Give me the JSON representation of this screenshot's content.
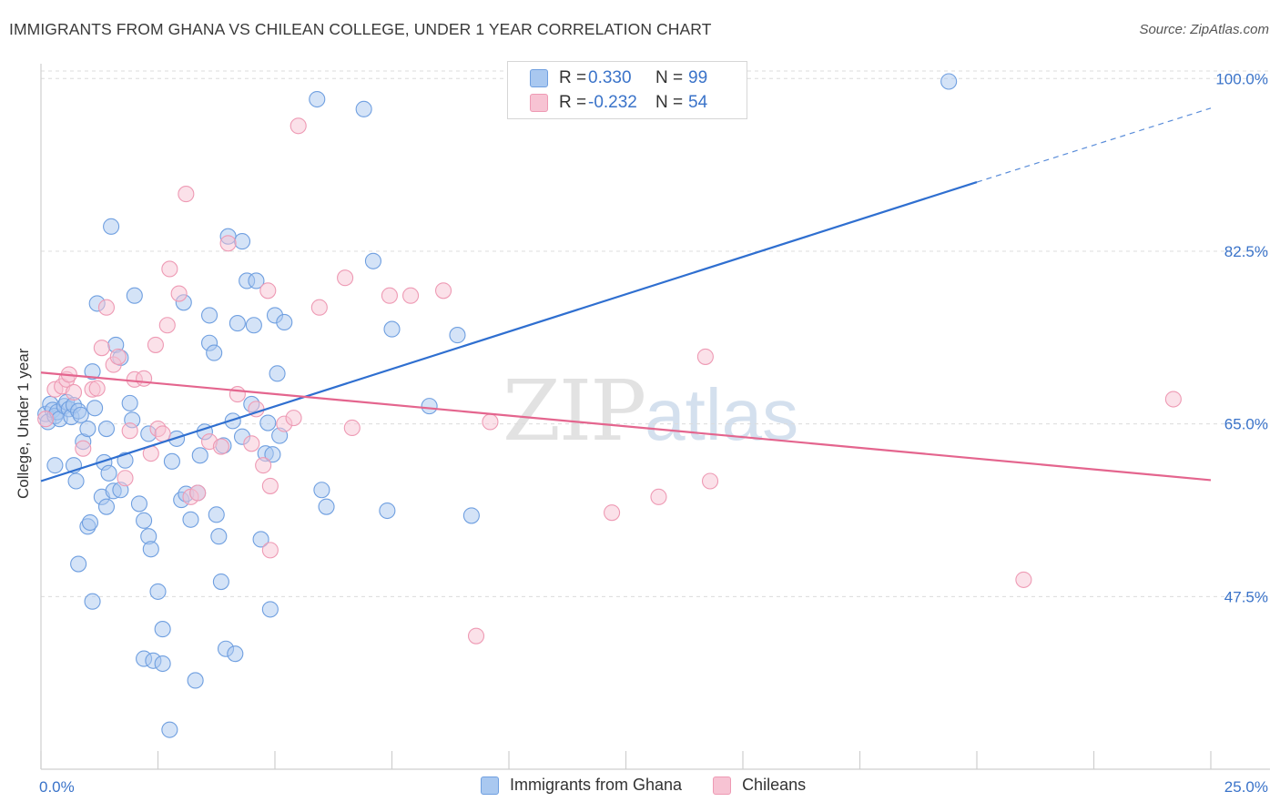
{
  "title": "IMMIGRANTS FROM GHANA VS CHILEAN COLLEGE, UNDER 1 YEAR CORRELATION CHART",
  "source": "Source: ZipAtlas.com",
  "watermark": {
    "zip": "ZIP",
    "atlas": "atlas"
  },
  "legend": {
    "rows": [
      {
        "r_label": "R =",
        "r_value": "0.330",
        "n_label": "N =",
        "n_value": "99",
        "color": "#a9c8f0",
        "border": "#6f9fe0"
      },
      {
        "r_label": "R =",
        "r_value": "-0.232",
        "n_label": "N =",
        "n_value": "54",
        "color": "#f7c3d3",
        "border": "#ee9ab4"
      }
    ]
  },
  "bottom_legend": [
    {
      "label": "Immigrants from Ghana",
      "color": "#a9c8f0",
      "border": "#6f9fe0"
    },
    {
      "label": "Chileans",
      "color": "#f7c3d3",
      "border": "#ee9ab4"
    }
  ],
  "chart_data": {
    "type": "scatter",
    "ylabel": "College, Under 1 year",
    "xlim": [
      0,
      25
    ],
    "ylim": [
      30,
      101.5
    ],
    "x_tick_labels": [
      {
        "value": 0,
        "label": "0.0%"
      },
      {
        "value": 25,
        "label": "25.0%"
      }
    ],
    "y_tick_labels": [
      {
        "value": 100,
        "label": "100.0%"
      },
      {
        "value": 82.5,
        "label": "82.5%"
      },
      {
        "value": 65,
        "label": "65.0%"
      },
      {
        "value": 47.5,
        "label": "47.5%"
      }
    ],
    "grid": true,
    "axis_color": "#3a73c9",
    "series": [
      {
        "name": "Immigrants from Ghana",
        "color": "#6f9fe0",
        "fill": "#a9c8f0",
        "trend": {
          "x0": 0,
          "y0": 59.2,
          "x1": 20.0,
          "y1": 89.5,
          "dash_to_x": 25.0,
          "dash_to_y": 97.0,
          "color": "#2f6fd0"
        },
        "points": [
          [
            0.1,
            66.0
          ],
          [
            0.15,
            65.2
          ],
          [
            0.2,
            67.0
          ],
          [
            0.25,
            66.4
          ],
          [
            0.3,
            65.8
          ],
          [
            0.35,
            66.2
          ],
          [
            0.4,
            65.5
          ],
          [
            0.5,
            66.8
          ],
          [
            0.55,
            67.2
          ],
          [
            0.6,
            66.5
          ],
          [
            0.65,
            65.7
          ],
          [
            0.7,
            66.9
          ],
          [
            0.8,
            66.3
          ],
          [
            0.85,
            65.9
          ],
          [
            0.3,
            60.8
          ],
          [
            0.7,
            60.8
          ],
          [
            0.75,
            59.2
          ],
          [
            0.9,
            63.2
          ],
          [
            1.0,
            64.5
          ],
          [
            1.1,
            70.3
          ],
          [
            1.15,
            66.6
          ],
          [
            1.2,
            77.2
          ],
          [
            1.3,
            57.6
          ],
          [
            1.35,
            61.1
          ],
          [
            1.4,
            64.5
          ],
          [
            1.45,
            60.0
          ],
          [
            1.55,
            58.2
          ],
          [
            1.6,
            73.0
          ],
          [
            1.7,
            71.7
          ],
          [
            1.8,
            61.3
          ],
          [
            1.9,
            67.1
          ],
          [
            1.95,
            65.4
          ],
          [
            2.1,
            56.9
          ],
          [
            2.2,
            55.2
          ],
          [
            2.3,
            53.6
          ],
          [
            2.35,
            52.3
          ],
          [
            2.5,
            48.0
          ],
          [
            2.6,
            44.2
          ],
          [
            2.2,
            41.2
          ],
          [
            2.4,
            41.0
          ],
          [
            2.6,
            40.7
          ],
          [
            2.75,
            34.0
          ],
          [
            2.8,
            61.2
          ],
          [
            2.9,
            63.5
          ],
          [
            3.0,
            57.3
          ],
          [
            3.1,
            57.9
          ],
          [
            3.2,
            55.3
          ],
          [
            3.3,
            39.0
          ],
          [
            3.35,
            58.0
          ],
          [
            3.4,
            61.8
          ],
          [
            3.5,
            64.2
          ],
          [
            3.6,
            73.2
          ],
          [
            3.7,
            72.2
          ],
          [
            3.75,
            55.8
          ],
          [
            3.8,
            53.6
          ],
          [
            3.85,
            49.0
          ],
          [
            3.9,
            62.8
          ],
          [
            3.95,
            42.2
          ],
          [
            4.0,
            84.0
          ],
          [
            4.1,
            65.3
          ],
          [
            4.15,
            41.7
          ],
          [
            4.2,
            75.2
          ],
          [
            4.3,
            63.7
          ],
          [
            4.4,
            79.5
          ],
          [
            4.5,
            67.0
          ],
          [
            4.55,
            75.0
          ],
          [
            4.6,
            79.5
          ],
          [
            4.7,
            53.3
          ],
          [
            4.8,
            62.0
          ],
          [
            4.85,
            65.1
          ],
          [
            4.9,
            46.2
          ],
          [
            4.95,
            61.9
          ],
          [
            5.0,
            76.0
          ],
          [
            5.05,
            70.1
          ],
          [
            5.1,
            63.8
          ],
          [
            5.2,
            75.3
          ],
          [
            5.9,
            97.9
          ],
          [
            6.0,
            58.3
          ],
          [
            6.1,
            56.6
          ],
          [
            6.9,
            96.9
          ],
          [
            7.1,
            81.5
          ],
          [
            7.4,
            56.2
          ],
          [
            7.5,
            74.6
          ],
          [
            8.3,
            66.8
          ],
          [
            8.9,
            74.0
          ],
          [
            9.2,
            55.7
          ],
          [
            19.4,
            99.7
          ],
          [
            1.1,
            47.0
          ],
          [
            0.8,
            50.8
          ],
          [
            1.0,
            54.6
          ],
          [
            1.05,
            55.0
          ],
          [
            1.5,
            85.0
          ],
          [
            2.0,
            78.0
          ],
          [
            3.05,
            77.3
          ],
          [
            3.6,
            76.0
          ],
          [
            4.3,
            83.5
          ],
          [
            2.3,
            64.0
          ],
          [
            1.4,
            56.6
          ],
          [
            1.7,
            58.3
          ]
        ]
      },
      {
        "name": "Chileans",
        "color": "#ee9ab4",
        "fill": "#f7c3d3",
        "trend": {
          "x0": 0,
          "y0": 70.2,
          "x1": 25.0,
          "y1": 59.3,
          "color": "#e4658e"
        },
        "points": [
          [
            0.1,
            65.5
          ],
          [
            0.3,
            68.5
          ],
          [
            0.45,
            68.8
          ],
          [
            0.55,
            69.5
          ],
          [
            0.6,
            70.0
          ],
          [
            0.7,
            68.2
          ],
          [
            0.9,
            62.5
          ],
          [
            1.1,
            68.5
          ],
          [
            1.2,
            68.6
          ],
          [
            1.3,
            72.7
          ],
          [
            1.4,
            76.8
          ],
          [
            1.55,
            71.0
          ],
          [
            1.65,
            71.8
          ],
          [
            1.8,
            59.5
          ],
          [
            1.9,
            64.3
          ],
          [
            2.0,
            69.5
          ],
          [
            2.2,
            69.6
          ],
          [
            2.35,
            62.0
          ],
          [
            2.45,
            73.0
          ],
          [
            2.5,
            64.5
          ],
          [
            2.6,
            64.0
          ],
          [
            2.75,
            80.7
          ],
          [
            2.95,
            78.2
          ],
          [
            3.1,
            88.3
          ],
          [
            3.2,
            57.6
          ],
          [
            3.35,
            58.0
          ],
          [
            3.6,
            63.2
          ],
          [
            3.85,
            62.7
          ],
          [
            4.0,
            83.3
          ],
          [
            4.2,
            68.0
          ],
          [
            4.5,
            63.0
          ],
          [
            4.6,
            66.5
          ],
          [
            4.75,
            60.8
          ],
          [
            4.85,
            78.5
          ],
          [
            4.9,
            58.7
          ],
          [
            4.9,
            52.2
          ],
          [
            5.2,
            65.0
          ],
          [
            5.4,
            65.6
          ],
          [
            5.5,
            95.2
          ],
          [
            5.95,
            76.8
          ],
          [
            6.5,
            79.8
          ],
          [
            6.65,
            64.6
          ],
          [
            7.45,
            78.0
          ],
          [
            7.9,
            78.0
          ],
          [
            8.6,
            78.5
          ],
          [
            9.3,
            43.5
          ],
          [
            9.6,
            65.2
          ],
          [
            12.2,
            56.0
          ],
          [
            13.2,
            57.6
          ],
          [
            14.2,
            71.8
          ],
          [
            14.3,
            59.2
          ],
          [
            21.0,
            49.2
          ],
          [
            24.2,
            67.5
          ],
          [
            2.7,
            75.0
          ]
        ]
      }
    ]
  }
}
